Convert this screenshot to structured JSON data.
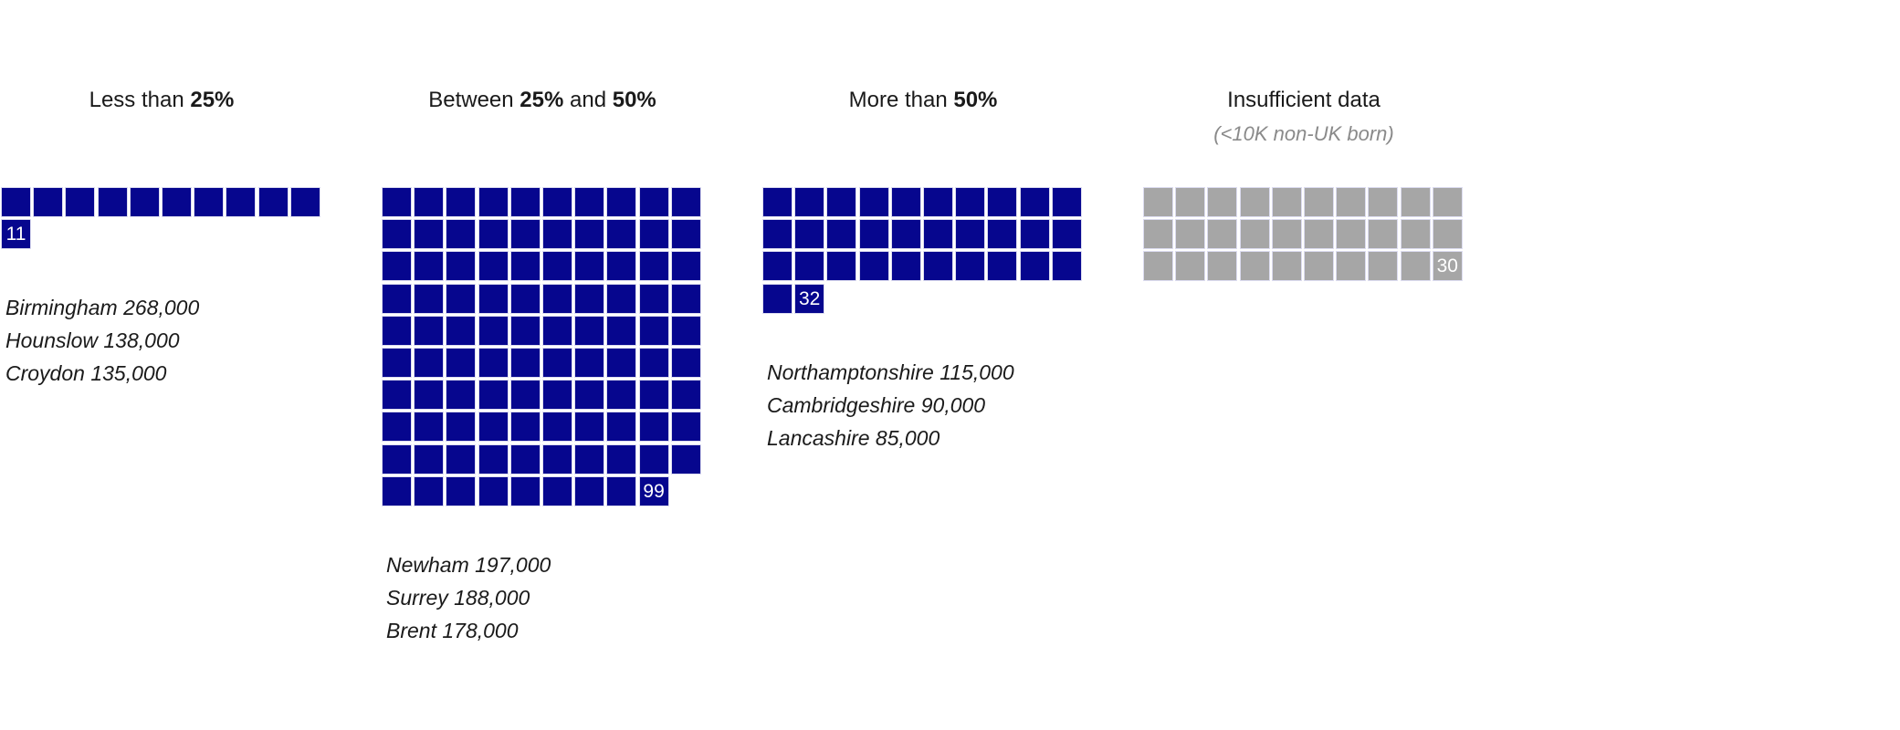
{
  "chart_data": {
    "type": "waffle",
    "columns_per_row": 10,
    "colors": {
      "with_data": "#06068e",
      "insufficient": "#a6a6a6"
    },
    "groups": [
      {
        "id": "less-25",
        "title_parts": [
          {
            "text": "Less than ",
            "bold": false
          },
          {
            "text": "25%",
            "bold": true
          }
        ],
        "subtitle": "",
        "count": 11,
        "count_label": "11",
        "color": "#06068e",
        "examples": [
          "Birmingham 268,000",
          "Hounslow 138,000",
          "Croydon 135,000"
        ]
      },
      {
        "id": "between-25-50",
        "title_parts": [
          {
            "text": "Between ",
            "bold": false
          },
          {
            "text": "25%",
            "bold": true
          },
          {
            "text": " and ",
            "bold": false
          },
          {
            "text": "50%",
            "bold": true
          }
        ],
        "subtitle": "",
        "count": 99,
        "count_label": "99",
        "color": "#06068e",
        "examples": [
          "Newham 197,000",
          "Surrey 188,000",
          "Brent 178,000"
        ]
      },
      {
        "id": "more-50",
        "title_parts": [
          {
            "text": "More than ",
            "bold": false
          },
          {
            "text": "50%",
            "bold": true
          }
        ],
        "subtitle": "",
        "count": 32,
        "count_label": "32",
        "color": "#06068e",
        "examples": [
          "Northamptonshire 115,000",
          "Cambridgeshire 90,000",
          "Lancashire 85,000"
        ]
      },
      {
        "id": "insufficient",
        "title_parts": [
          {
            "text": "Insufficient data",
            "bold": false
          }
        ],
        "subtitle": "(<10K non-UK born)",
        "count": 30,
        "count_label": "30",
        "color": "#a6a6a6",
        "examples": []
      }
    ]
  }
}
